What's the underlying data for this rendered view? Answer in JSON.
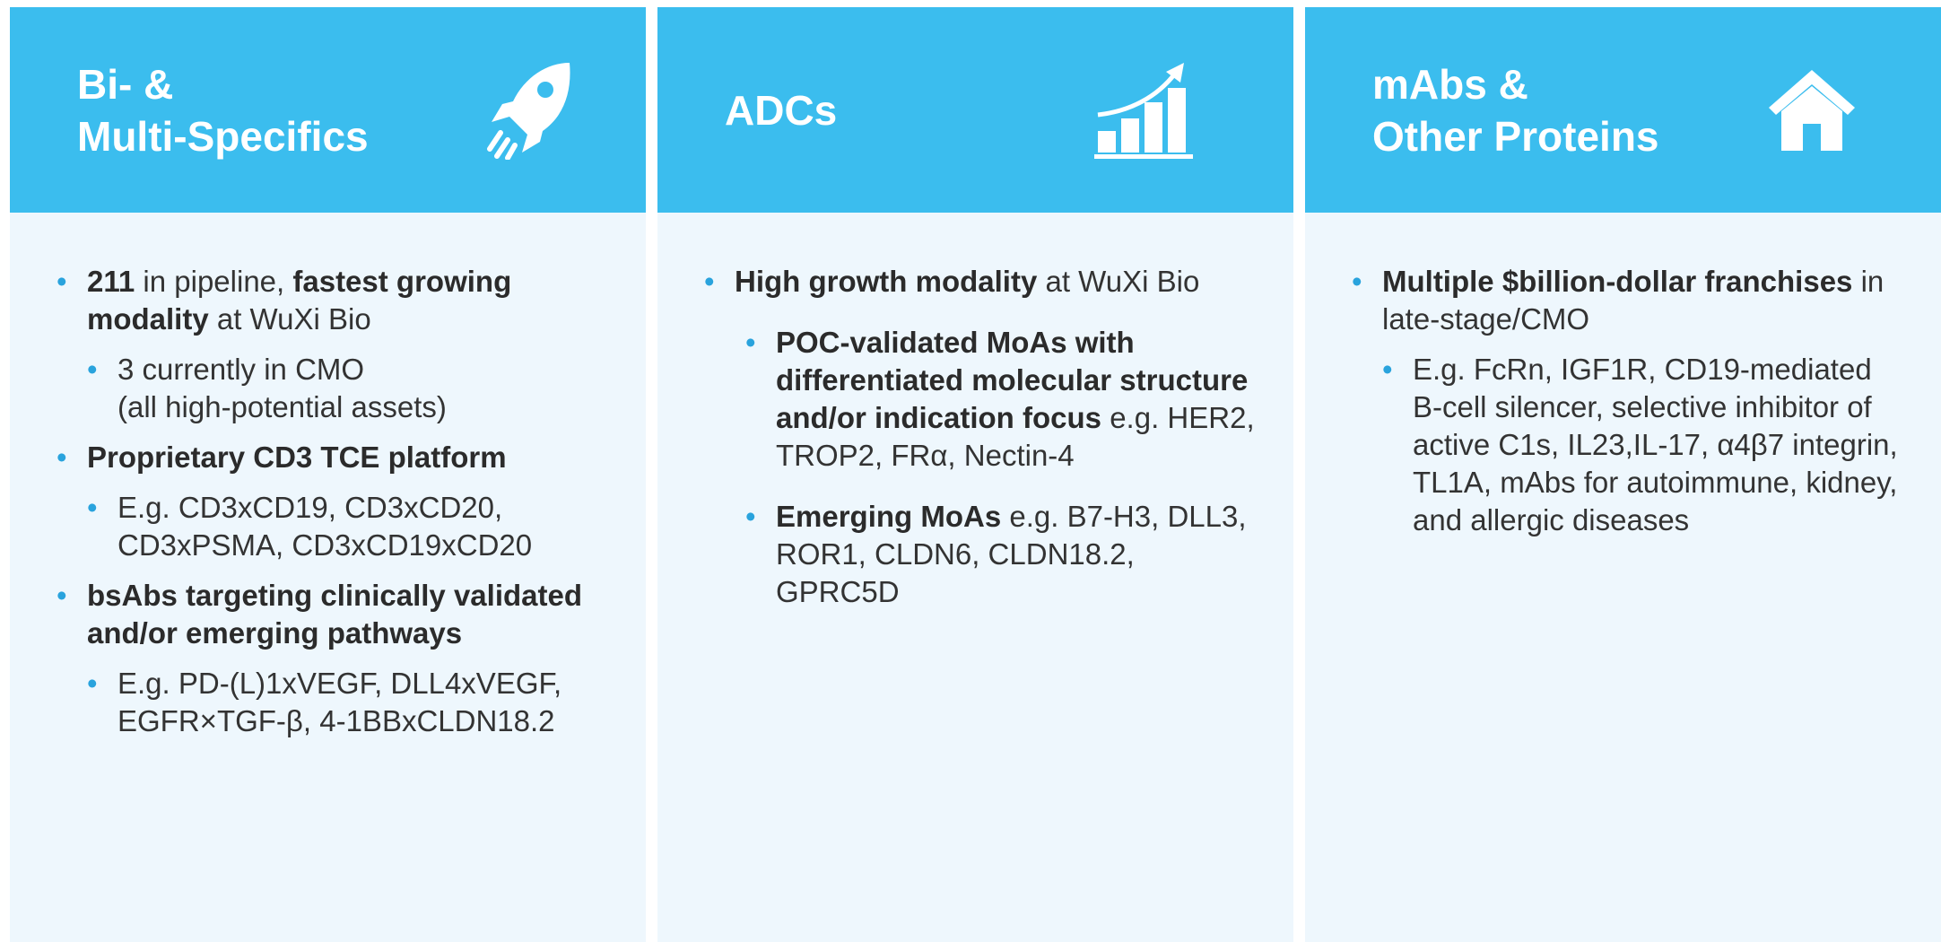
{
  "columns": [
    {
      "title": [
        "Bi- &",
        "Multi-Specifics"
      ],
      "bullets": [
        {
          "level": 1,
          "runs": [
            {
              "b": "211"
            },
            {
              "t": " in pipeline, "
            },
            {
              "b": "fastest growing modality"
            },
            {
              "t": " at WuXi Bio"
            }
          ]
        },
        {
          "level": 2,
          "runs": [
            {
              "t": "3 currently in CMO"
            },
            {
              "br": "(all high-potential assets)"
            }
          ]
        },
        {
          "level": 1,
          "runs": [
            {
              "b": "Proprietary CD3 TCE platform"
            }
          ]
        },
        {
          "level": 2,
          "runs": [
            {
              "t": "E.g. CD3xCD19, CD3xCD20, CD3xPSMA, CD3xCD19xCD20"
            }
          ]
        },
        {
          "level": 1,
          "runs": [
            {
              "b": "bsAbs targeting clinically validated and/or emerging pathways"
            }
          ]
        },
        {
          "level": 2,
          "runs": [
            {
              "t": "E.g. PD-(L)1xVEGF, DLL4xVEGF, EGFR×TGF-β, 4-1BBxCLDN18.2"
            }
          ]
        }
      ]
    },
    {
      "title": [
        "ADCs"
      ],
      "bullets": [
        {
          "level": 1,
          "runs": [
            {
              "b": "High growth modality"
            },
            {
              "t": " at WuXi Bio"
            }
          ]
        },
        {
          "level": 2,
          "runs": [
            {
              "b": "POC-validated MoAs with differentiated molecular structure and/or indication focus"
            },
            {
              "t": " e.g. HER2, TROP2, FRα, Nectin-4"
            }
          ]
        },
        {
          "level": 2,
          "runs": [
            {
              "b": "Emerging MoAs"
            },
            {
              "t": " e.g. B7-H3, DLL3, ROR1, CLDN6, CLDN18.2, GPRC5D"
            }
          ]
        }
      ]
    },
    {
      "title": [
        "mAbs &",
        "Other Proteins"
      ],
      "bullets": [
        {
          "level": 1,
          "runs": [
            {
              "b": "Multiple $billion-dollar franchises"
            },
            {
              "t": " in late-stage/CMO"
            }
          ]
        },
        {
          "level": 2,
          "runs": [
            {
              "t": "E.g. FcRn, IGF1R, CD19-mediated B-cell silencer, selective inhibitor of active C1s, IL23,IL-17, α4β7 integrin, TL1A, mAbs for autoimmune, kidney, and allergic diseases"
            }
          ]
        }
      ]
    }
  ]
}
